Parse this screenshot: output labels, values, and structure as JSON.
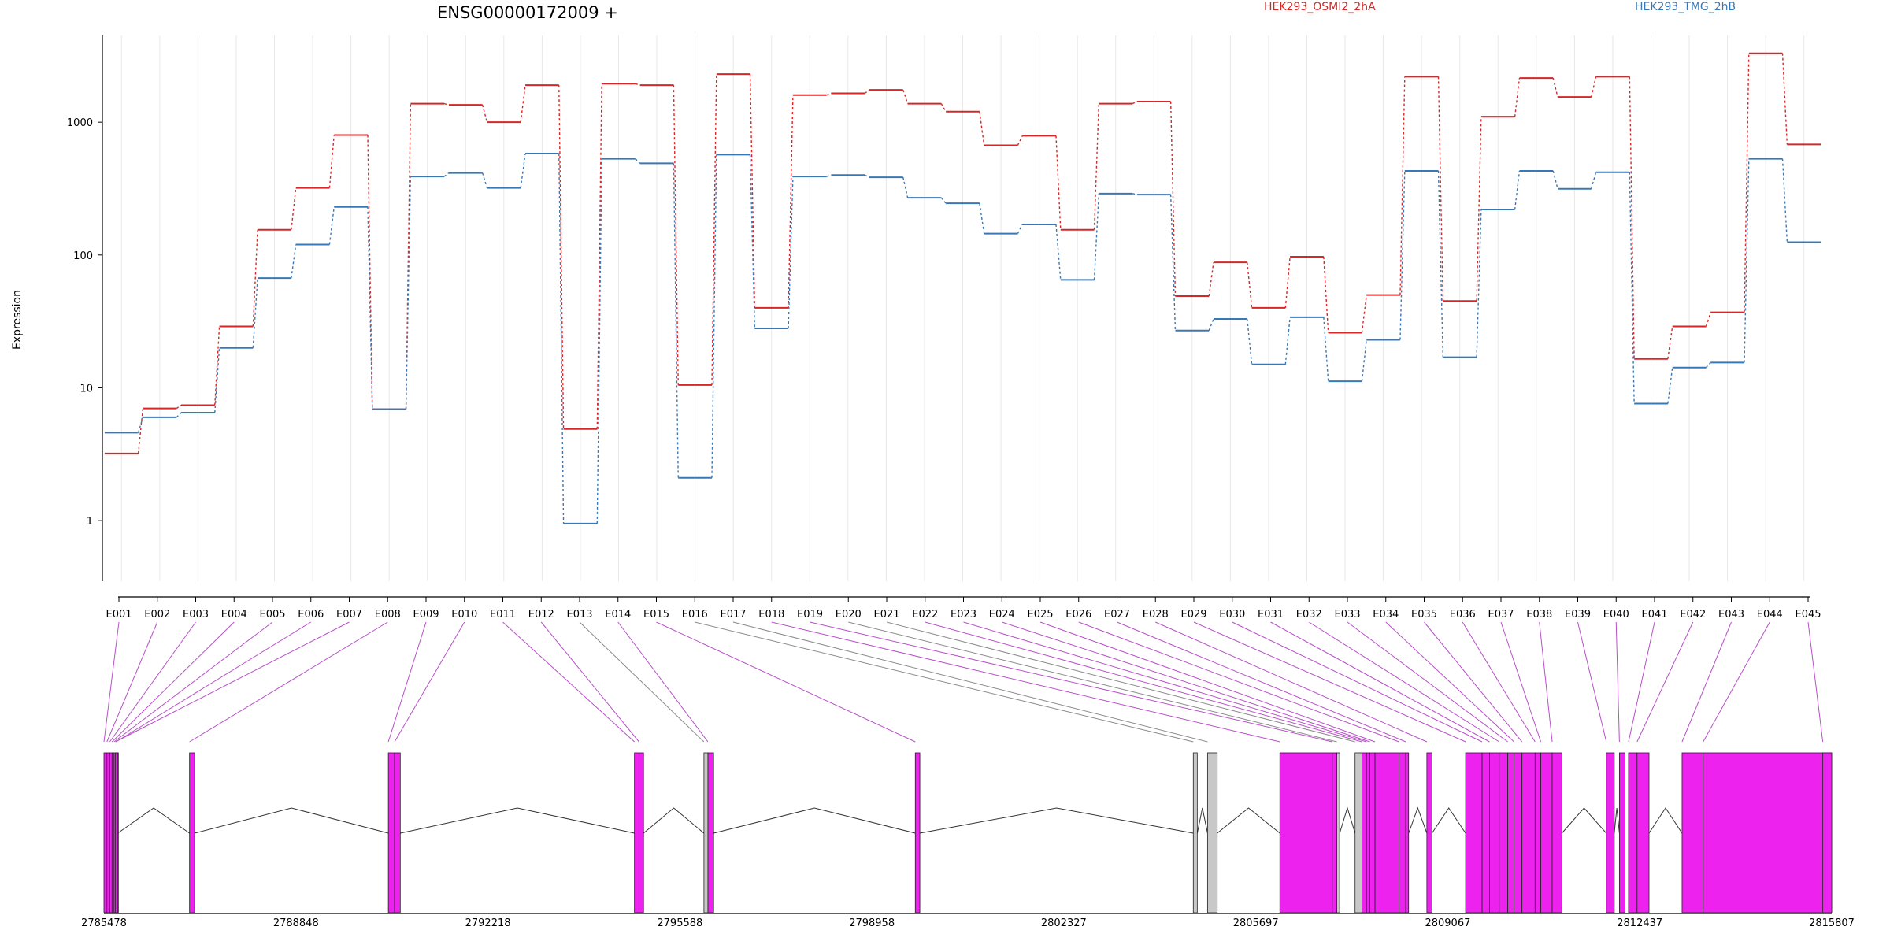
{
  "chart_data": {
    "type": "line",
    "title": "ENSG00000172009 +",
    "ylabel": "Expression",
    "yscale": "log",
    "ylim": [
      0.35,
      4500
    ],
    "yticks": [
      1,
      10,
      100,
      1000
    ],
    "grid": false,
    "legend_position": "top",
    "categories": [
      "E001",
      "E002",
      "E003",
      "E004",
      "E005",
      "E006",
      "E007",
      "E008",
      "E009",
      "E010",
      "E011",
      "E012",
      "E013",
      "E014",
      "E015",
      "E016",
      "E017",
      "E018",
      "E019",
      "E020",
      "E021",
      "E022",
      "E023",
      "E024",
      "E025",
      "E026",
      "E027",
      "E028",
      "E029",
      "E030",
      "E031",
      "E032",
      "E033",
      "E034",
      "E035",
      "E036",
      "E037",
      "E038",
      "E039",
      "E040",
      "E041",
      "E042",
      "E043",
      "E044",
      "E045"
    ],
    "series": [
      {
        "name": "HEK293_OSMI2_2hA",
        "color": "#d62728",
        "values": [
          3.2,
          7.0,
          7.4,
          29,
          155,
          320,
          800,
          6.9,
          1380,
          1350,
          1000,
          1900,
          4.9,
          1950,
          1900,
          10.5,
          2300,
          40,
          1600,
          1650,
          1750,
          1380,
          1200,
          670,
          790,
          155,
          1380,
          1430,
          49,
          88,
          40,
          97,
          26,
          50,
          2200,
          45,
          1100,
          2150,
          1550,
          2200,
          16.5,
          29,
          37,
          3300,
          680
        ]
      },
      {
        "name": "HEK293_TMG_2hB",
        "color": "#3a78b5",
        "values": [
          4.6,
          6.0,
          6.5,
          20,
          67,
          120,
          230,
          6.9,
          390,
          415,
          320,
          580,
          0.95,
          530,
          490,
          2.1,
          570,
          28,
          390,
          400,
          385,
          270,
          245,
          145,
          170,
          65,
          290,
          285,
          27,
          33,
          15,
          34,
          11.2,
          23,
          430,
          17,
          220,
          430,
          315,
          420,
          7.6,
          14.2,
          15.5,
          530,
          125
        ]
      }
    ],
    "gene_model": {
      "genomic_ticks": [
        "2785478",
        "2788848",
        "2792218",
        "2795588",
        "2798958",
        "2802327",
        "2805697",
        "2809067",
        "2812437",
        "2815807"
      ],
      "range": [
        2785478,
        2815807
      ],
      "exons": [
        {
          "id": "E001",
          "start": 2785478,
          "end": 2785530,
          "color": "#ee22ee"
        },
        {
          "id": "E002",
          "start": 2785530,
          "end": 2785580,
          "color": "#ee22ee"
        },
        {
          "id": "E003",
          "start": 2785580,
          "end": 2785620,
          "color": "#ee22ee"
        },
        {
          "id": "E004",
          "start": 2785620,
          "end": 2785655,
          "color": "#ee22ee"
        },
        {
          "id": "E005",
          "start": 2785655,
          "end": 2785690,
          "color": "#ee22ee"
        },
        {
          "id": "E006",
          "start": 2785690,
          "end": 2785720,
          "color": "#ee22ee"
        },
        {
          "id": "E007",
          "start": 2785720,
          "end": 2785680,
          "color": "#ee22ee"
        },
        {
          "id": "E008",
          "start": 2786980,
          "end": 2787070,
          "color": "#ee22ee"
        },
        {
          "id": "E009",
          "start": 2790470,
          "end": 2790580,
          "color": "#ee22ee"
        },
        {
          "id": "E010",
          "start": 2790580,
          "end": 2790680,
          "color": "#ee22ee"
        },
        {
          "id": "E011",
          "start": 2794790,
          "end": 2794870,
          "color": "#ee22ee"
        },
        {
          "id": "E012",
          "start": 2794870,
          "end": 2794950,
          "color": "#ee22ee"
        },
        {
          "id": "E013",
          "start": 2796010,
          "end": 2796080,
          "color": "#c8c8c8"
        },
        {
          "id": "E014",
          "start": 2796080,
          "end": 2796180,
          "color": "#ee22ee"
        },
        {
          "id": "E015",
          "start": 2799720,
          "end": 2799800,
          "color": "#ee22ee"
        },
        {
          "id": "E016",
          "start": 2804600,
          "end": 2804670,
          "color": "#c8c8c8"
        },
        {
          "id": "E017",
          "start": 2804850,
          "end": 2805020,
          "color": "#c8c8c8"
        },
        {
          "id": "E018",
          "start": 2806120,
          "end": 2807040,
          "color": "#ee22ee"
        },
        {
          "id": "E019",
          "start": 2807040,
          "end": 2807120,
          "color": "#ee22ee"
        },
        {
          "id": "E020",
          "start": 2807120,
          "end": 2807170,
          "color": "#c8c8c8"
        },
        {
          "id": "E021",
          "start": 2807440,
          "end": 2807560,
          "color": "#c8c8c8"
        },
        {
          "id": "E022",
          "start": 2807560,
          "end": 2807640,
          "color": "#ee22ee"
        },
        {
          "id": "E023",
          "start": 2807640,
          "end": 2807700,
          "color": "#ee22ee"
        },
        {
          "id": "E024",
          "start": 2807700,
          "end": 2807790,
          "color": "#ee22ee"
        },
        {
          "id": "E025",
          "start": 2807790,
          "end": 2808210,
          "color": "#ee22ee"
        },
        {
          "id": "E026",
          "start": 2808210,
          "end": 2808330,
          "color": "#ee22ee"
        },
        {
          "id": "E027",
          "start": 2808330,
          "end": 2808380,
          "color": "#ee22ee"
        },
        {
          "id": "E028",
          "start": 2808700,
          "end": 2808790,
          "color": "#ee22ee"
        },
        {
          "id": "E029",
          "start": 2809380,
          "end": 2809670,
          "color": "#ee22ee"
        },
        {
          "id": "E030",
          "start": 2809670,
          "end": 2809800,
          "color": "#ee22ee"
        },
        {
          "id": "E031",
          "start": 2809800,
          "end": 2809970,
          "color": "#ee22ee"
        },
        {
          "id": "E032",
          "start": 2809970,
          "end": 2810120,
          "color": "#ee22ee"
        },
        {
          "id": "E033",
          "start": 2810120,
          "end": 2810230,
          "color": "#ee22ee"
        },
        {
          "id": "E034",
          "start": 2810230,
          "end": 2810370,
          "color": "#ee22ee"
        },
        {
          "id": "E035",
          "start": 2810370,
          "end": 2810600,
          "color": "#ee22ee"
        },
        {
          "id": "E036",
          "start": 2810600,
          "end": 2810700,
          "color": "#ee22ee"
        },
        {
          "id": "E037",
          "start": 2810700,
          "end": 2810900,
          "color": "#ee22ee"
        },
        {
          "id": "E038",
          "start": 2810900,
          "end": 2811070,
          "color": "#ee22ee"
        },
        {
          "id": "E039",
          "start": 2811850,
          "end": 2811990,
          "color": "#ee22ee"
        },
        {
          "id": "E040",
          "start": 2812080,
          "end": 2812180,
          "color": "#ee22ee"
        },
        {
          "id": "E041",
          "start": 2812240,
          "end": 2812390,
          "color": "#ee22ee"
        },
        {
          "id": "E042",
          "start": 2812390,
          "end": 2812600,
          "color": "#ee22ee"
        },
        {
          "id": "E043",
          "start": 2813180,
          "end": 2813550,
          "color": "#ee22ee"
        },
        {
          "id": "E044",
          "start": 2813550,
          "end": 2815807,
          "color": "#ee22ee"
        },
        {
          "id": "E045",
          "start": 2815650,
          "end": 2815807,
          "color": "#ee22ee"
        }
      ]
    }
  }
}
